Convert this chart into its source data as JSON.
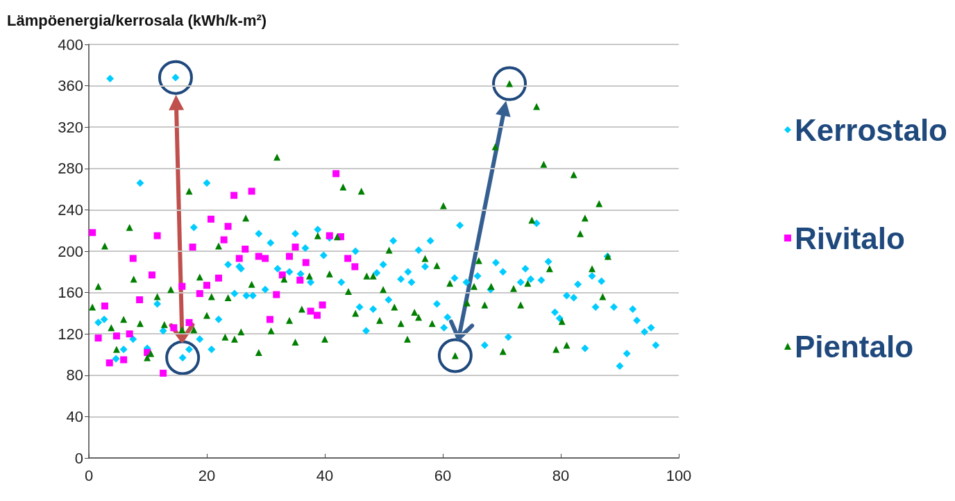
{
  "chart_data": {
    "type": "scatter",
    "ylabel": "Lämpöenergia/kerrosala (kWh/k-m²)",
    "xlim": [
      0,
      100
    ],
    "xticks": [
      0,
      20,
      40,
      60,
      80,
      100
    ],
    "ylim": [
      0,
      400
    ],
    "yticks": [
      0,
      40,
      80,
      120,
      160,
      200,
      240,
      280,
      320,
      360,
      400
    ],
    "grid": "y",
    "legend": "right",
    "series": [
      {
        "name": "Kerrostalo",
        "color": "#00ccff",
        "marker": "diamond",
        "x": [
          1.6,
          2.6,
          3.6,
          4.6,
          5.9,
          7.5,
          8.7,
          9.9,
          11.6,
          12.6,
          14.7,
          15.9,
          17,
          17.8,
          18.8,
          20,
          20.8,
          22,
          23.6,
          24.7,
          25.5,
          25.8,
          26.7,
          27.8,
          28.8,
          29.9,
          30.8,
          32,
          34,
          35,
          35.9,
          36.7,
          37.6,
          38.8,
          39.8,
          40.8,
          42.8,
          45.2,
          45.9,
          47,
          48.2,
          48.8,
          49.9,
          50.8,
          51.6,
          52.9,
          54.1,
          54.7,
          55.9,
          57,
          57.9,
          59,
          60.2,
          60.8,
          62,
          62.9,
          64,
          65.9,
          67.1,
          68.1,
          69,
          70.2,
          71.1,
          73.2,
          74,
          74.9,
          75.9,
          76.7,
          77.9,
          79,
          79.8,
          81,
          82.2,
          82.9,
          84.1,
          85.3,
          85.9,
          86.9,
          87.9,
          89,
          90,
          91.2,
          92.2,
          92.9,
          94.2,
          95.3,
          96.1
        ],
        "values": [
          131,
          134,
          367,
          96,
          105,
          115,
          266,
          106,
          149,
          123,
          368,
          97,
          105,
          223,
          115,
          266,
          105,
          134,
          187,
          159,
          185,
          183,
          157,
          157,
          217,
          163,
          208,
          183,
          180,
          217,
          178,
          203,
          170,
          221,
          196,
          213,
          170,
          200,
          146,
          123,
          144,
          179,
          187,
          153,
          210,
          173,
          180,
          170,
          201,
          185,
          210,
          149,
          126,
          136,
          174,
          225,
          170,
          176,
          109,
          163,
          189,
          180,
          117,
          170,
          183,
          173,
          227,
          172,
          190,
          141,
          135,
          157,
          155,
          168,
          106,
          176,
          146,
          171,
          195,
          146,
          89,
          101,
          144,
          133,
          122,
          126,
          109
        ]
      },
      {
        "name": "Rivitalo",
        "color": "#ff00ff",
        "marker": "square",
        "x": [
          0.6,
          1.6,
          2.7,
          3.5,
          4.7,
          5.9,
          6.9,
          7.5,
          8.6,
          9.9,
          10.7,
          11.6,
          12.6,
          14.4,
          15.8,
          17,
          17.6,
          18.8,
          20,
          20.7,
          22,
          22.9,
          23.6,
          24.6,
          25.5,
          26.5,
          27.6,
          28.8,
          29.9,
          30.7,
          31.8,
          32.8,
          34,
          35,
          35.8,
          36.8,
          37.6,
          38.7,
          39.6,
          40.8,
          41.9,
          42.7,
          43.9,
          45.1
        ],
        "values": [
          218,
          116,
          147,
          92,
          118,
          95,
          120,
          193,
          153,
          102,
          177,
          215,
          82,
          126,
          166,
          131,
          204,
          159,
          167,
          231,
          174,
          211,
          224,
          254,
          193,
          202,
          258,
          195,
          193,
          134,
          158,
          177,
          195,
          204,
          172,
          189,
          142,
          138,
          148,
          215,
          275,
          214,
          193,
          185
        ]
      },
      {
        "name": "Pientalo",
        "color": "#007f00",
        "marker": "triangle",
        "x": [
          0.6,
          1.6,
          2.7,
          3.8,
          4.7,
          5.9,
          6.9,
          7.6,
          8.7,
          9.9,
          10.5,
          11.6,
          12.8,
          13.9,
          15.8,
          17,
          17.8,
          18.8,
          20,
          20.8,
          22,
          23.1,
          23.6,
          24.7,
          25.8,
          26.6,
          27.6,
          28.8,
          30.9,
          31.9,
          33.1,
          34,
          35,
          36.1,
          37.4,
          38.8,
          40,
          40.8,
          42.1,
          43.1,
          44,
          45.2,
          46.2,
          47.1,
          48.2,
          49.3,
          49.9,
          50.9,
          51.8,
          52.9,
          54,
          55.2,
          55.9,
          57,
          58.2,
          59,
          60.1,
          61.2,
          62.1,
          64.1,
          65.3,
          66.1,
          67.1,
          68.2,
          68.9,
          70.2,
          71.3,
          72,
          73.2,
          74.4,
          75.1,
          75.9,
          77.1,
          78.1,
          79.2,
          80.2,
          81,
          82.2,
          83.3,
          84.1,
          85.3,
          86.5,
          87.1,
          88
        ],
        "values": [
          146,
          166,
          205,
          126,
          105,
          134,
          223,
          173,
          130,
          97,
          101,
          156,
          129,
          163,
          124,
          258,
          124,
          175,
          138,
          156,
          205,
          117,
          155,
          115,
          122,
          232,
          168,
          102,
          123,
          291,
          173,
          133,
          112,
          144,
          176,
          215,
          115,
          178,
          214,
          262,
          161,
          140,
          258,
          176,
          176,
          133,
          163,
          201,
          146,
          130,
          115,
          141,
          136,
          193,
          130,
          186,
          244,
          169,
          99,
          150,
          166,
          191,
          148,
          166,
          301,
          103,
          362,
          164,
          148,
          169,
          230,
          340,
          284,
          183,
          105,
          132,
          109,
          274,
          217,
          232,
          183,
          246,
          156,
          195
        ]
      }
    ]
  }
}
